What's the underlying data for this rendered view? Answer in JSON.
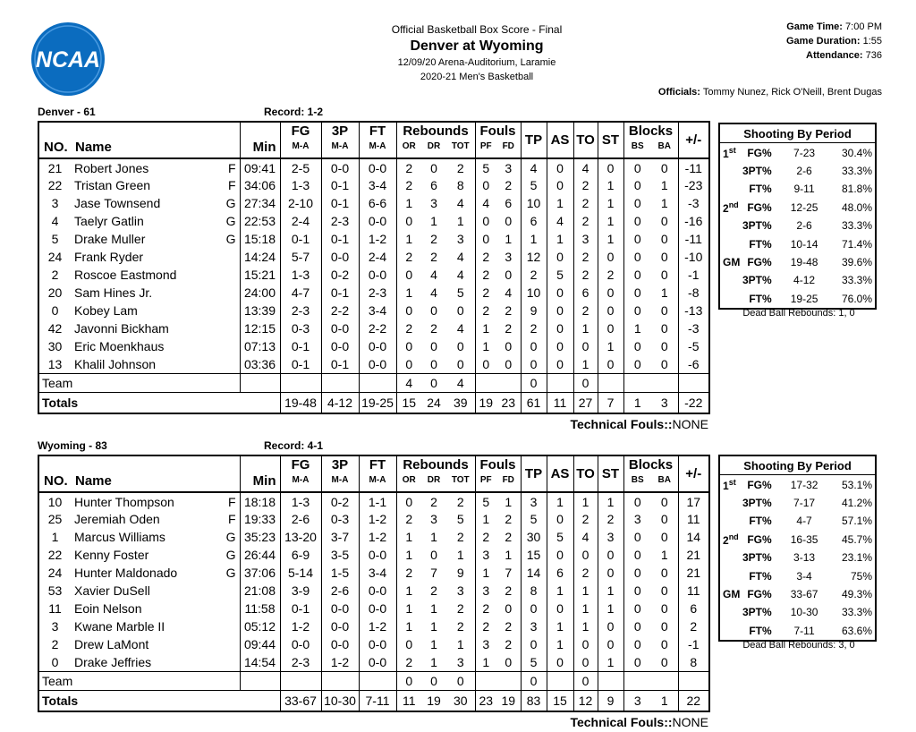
{
  "header": {
    "logo": "NCAA",
    "subtitle": "Official Basketball Box Score - Final",
    "title": "Denver at Wyoming",
    "venue": "12/09/20 Arena-Auditorium, Laramie",
    "season": "2020-21 Men's Basketball"
  },
  "game_info": [
    {
      "label": "Game Time:",
      "value": "7:00 PM"
    },
    {
      "label": "Game Duration:",
      "value": "1:55"
    },
    {
      "label": "Attendance:",
      "value": "736"
    }
  ],
  "officials": {
    "label": "Officials:",
    "value": "Tommy Nunez, Rick O'Neill, Brent Dugas"
  },
  "columns": {
    "no": "NO.",
    "name": "Name",
    "min": "Min",
    "fg": "FG",
    "fg_sub": "M-A",
    "tp3": "3P",
    "tp3_sub": "M-A",
    "ft": "FT",
    "ft_sub": "M-A",
    "rebounds": "Rebounds",
    "or": "OR",
    "dr": "DR",
    "tot": "TOT",
    "fouls": "Fouls",
    "pf": "PF",
    "fd": "FD",
    "tp": "TP",
    "as": "AS",
    "to": "TO",
    "st": "ST",
    "blocks": "Blocks",
    "bs": "BS",
    "ba": "BA",
    "pm": "+/-"
  },
  "teams": [
    {
      "label": "Denver - 61",
      "record": "Record: 1-2",
      "players": [
        {
          "no": "21",
          "name": "Robert Jones",
          "pos": "F",
          "min": "09:41",
          "stats": [
            "2-5",
            "0-0",
            "0-0",
            "2",
            "0",
            "2",
            "5",
            "3",
            "4",
            "0",
            "4",
            "0",
            "0",
            "0",
            "-11"
          ]
        },
        {
          "no": "22",
          "name": "Tristan Green",
          "pos": "F",
          "min": "34:06",
          "stats": [
            "1-3",
            "0-1",
            "3-4",
            "2",
            "6",
            "8",
            "0",
            "2",
            "5",
            "0",
            "2",
            "1",
            "0",
            "1",
            "-23"
          ]
        },
        {
          "no": "3",
          "name": "Jase Townsend",
          "pos": "G",
          "min": "27:34",
          "stats": [
            "2-10",
            "0-1",
            "6-6",
            "1",
            "3",
            "4",
            "4",
            "6",
            "10",
            "1",
            "2",
            "1",
            "0",
            "1",
            "-3"
          ]
        },
        {
          "no": "4",
          "name": "Taelyr Gatlin",
          "pos": "G",
          "min": "22:53",
          "stats": [
            "2-4",
            "2-3",
            "0-0",
            "0",
            "1",
            "1",
            "0",
            "0",
            "6",
            "4",
            "2",
            "1",
            "0",
            "0",
            "-16"
          ]
        },
        {
          "no": "5",
          "name": "Drake Muller",
          "pos": "G",
          "min": "15:18",
          "stats": [
            "0-1",
            "0-1",
            "1-2",
            "1",
            "2",
            "3",
            "0",
            "1",
            "1",
            "1",
            "3",
            "1",
            "0",
            "0",
            "-11"
          ]
        },
        {
          "no": "24",
          "name": "Frank Ryder",
          "min": "14:24",
          "stats": [
            "5-7",
            "0-0",
            "2-4",
            "2",
            "2",
            "4",
            "2",
            "3",
            "12",
            "0",
            "2",
            "0",
            "0",
            "0",
            "-10"
          ]
        },
        {
          "no": "2",
          "name": "Roscoe Eastmond",
          "min": "15:21",
          "stats": [
            "1-3",
            "0-2",
            "0-0",
            "0",
            "4",
            "4",
            "2",
            "0",
            "2",
            "5",
            "2",
            "2",
            "0",
            "0",
            "-1"
          ]
        },
        {
          "no": "20",
          "name": "Sam Hines Jr.",
          "min": "24:00",
          "stats": [
            "4-7",
            "0-1",
            "2-3",
            "1",
            "4",
            "5",
            "2",
            "4",
            "10",
            "0",
            "6",
            "0",
            "0",
            "1",
            "-8"
          ]
        },
        {
          "no": "0",
          "name": "Kobey Lam",
          "min": "13:39",
          "stats": [
            "2-3",
            "2-2",
            "3-4",
            "0",
            "0",
            "0",
            "2",
            "2",
            "9",
            "0",
            "2",
            "0",
            "0",
            "0",
            "-13"
          ]
        },
        {
          "no": "42",
          "name": "Javonni Bickham",
          "min": "12:15",
          "stats": [
            "0-3",
            "0-0",
            "2-2",
            "2",
            "2",
            "4",
            "1",
            "2",
            "2",
            "0",
            "1",
            "0",
            "1",
            "0",
            "-3"
          ]
        },
        {
          "no": "30",
          "name": "Eric Moenkhaus",
          "min": "07:13",
          "stats": [
            "0-1",
            "0-0",
            "0-0",
            "0",
            "0",
            "0",
            "1",
            "0",
            "0",
            "0",
            "0",
            "1",
            "0",
            "0",
            "-5"
          ]
        },
        {
          "no": "13",
          "name": "Khalil Johnson",
          "min": "03:36",
          "stats": [
            "0-1",
            "0-1",
            "0-0",
            "0",
            "0",
            "0",
            "0",
            "0",
            "0",
            "0",
            "1",
            "0",
            "0",
            "0",
            "-6"
          ]
        }
      ],
      "team_row": {
        "label": "Team",
        "or": "4",
        "dr": "0",
        "tot": "4",
        "tp": "0",
        "to": "0"
      },
      "totals": {
        "label": "Totals",
        "stats": [
          "19-48",
          "4-12",
          "19-25",
          "15",
          "24",
          "39",
          "19",
          "23",
          "61",
          "11",
          "27",
          "7",
          "1",
          "3",
          "-22"
        ]
      },
      "technical_fouls": {
        "label": "Technical Fouls::",
        "value": "NONE"
      },
      "shooting": {
        "title": "Shooting By Period",
        "periods": [
          {
            "num": "1",
            "sup": "st",
            "rows": [
              [
                "FG%",
                "7-23",
                "30.4%"
              ],
              [
                "3PT%",
                "2-6",
                "33.3%"
              ],
              [
                "FT%",
                "9-11",
                "81.8%"
              ]
            ]
          },
          {
            "num": "2",
            "sup": "nd",
            "rows": [
              [
                "FG%",
                "12-25",
                "48.0%"
              ],
              [
                "3PT%",
                "2-6",
                "33.3%"
              ],
              [
                "FT%",
                "10-14",
                "71.4%"
              ]
            ]
          },
          {
            "num": "GM",
            "rows": [
              [
                "FG%",
                "19-48",
                "39.6%"
              ],
              [
                "3PT%",
                "4-12",
                "33.3%"
              ],
              [
                "FT%",
                "19-25",
                "76.0%"
              ]
            ]
          }
        ]
      },
      "dead_ball": "Dead Ball Rebounds: 1, 0"
    },
    {
      "label": "Wyoming - 83",
      "record": "Record: 4-1",
      "players": [
        {
          "no": "10",
          "name": "Hunter Thompson",
          "pos": "F",
          "min": "18:18",
          "stats": [
            "1-3",
            "0-2",
            "1-1",
            "0",
            "2",
            "2",
            "5",
            "1",
            "3",
            "1",
            "1",
            "1",
            "0",
            "0",
            "17"
          ]
        },
        {
          "no": "25",
          "name": "Jeremiah Oden",
          "pos": "F",
          "min": "19:33",
          "stats": [
            "2-6",
            "0-3",
            "1-2",
            "2",
            "3",
            "5",
            "1",
            "2",
            "5",
            "0",
            "2",
            "2",
            "3",
            "0",
            "11"
          ]
        },
        {
          "no": "1",
          "name": "Marcus Williams",
          "pos": "G",
          "min": "35:23",
          "stats": [
            "13-20",
            "3-7",
            "1-2",
            "1",
            "1",
            "2",
            "2",
            "2",
            "30",
            "5",
            "4",
            "3",
            "0",
            "0",
            "14"
          ]
        },
        {
          "no": "22",
          "name": "Kenny Foster",
          "pos": "G",
          "min": "26:44",
          "stats": [
            "6-9",
            "3-5",
            "0-0",
            "1",
            "0",
            "1",
            "3",
            "1",
            "15",
            "0",
            "0",
            "0",
            "0",
            "1",
            "21"
          ]
        },
        {
          "no": "24",
          "name": "Hunter Maldonado",
          "pos": "G",
          "min": "37:06",
          "stats": [
            "5-14",
            "1-5",
            "3-4",
            "2",
            "7",
            "9",
            "1",
            "7",
            "14",
            "6",
            "2",
            "0",
            "0",
            "0",
            "21"
          ]
        },
        {
          "no": "53",
          "name": "Xavier DuSell",
          "min": "21:08",
          "stats": [
            "3-9",
            "2-6",
            "0-0",
            "1",
            "2",
            "3",
            "3",
            "2",
            "8",
            "1",
            "1",
            "1",
            "0",
            "0",
            "11"
          ]
        },
        {
          "no": "11",
          "name": "Eoin Nelson",
          "min": "11:58",
          "stats": [
            "0-1",
            "0-0",
            "0-0",
            "1",
            "1",
            "2",
            "2",
            "0",
            "0",
            "0",
            "1",
            "1",
            "0",
            "0",
            "6"
          ]
        },
        {
          "no": "3",
          "name": "Kwane Marble II",
          "min": "05:12",
          "stats": [
            "1-2",
            "0-0",
            "1-2",
            "1",
            "1",
            "2",
            "2",
            "2",
            "3",
            "1",
            "1",
            "0",
            "0",
            "0",
            "2"
          ]
        },
        {
          "no": "2",
          "name": "Drew LaMont",
          "min": "09:44",
          "stats": [
            "0-0",
            "0-0",
            "0-0",
            "0",
            "1",
            "1",
            "3",
            "2",
            "0",
            "1",
            "0",
            "0",
            "0",
            "0",
            "-1"
          ]
        },
        {
          "no": "0",
          "name": "Drake Jeffries",
          "min": "14:54",
          "stats": [
            "2-3",
            "1-2",
            "0-0",
            "2",
            "1",
            "3",
            "1",
            "0",
            "5",
            "0",
            "0",
            "1",
            "0",
            "0",
            "8"
          ]
        }
      ],
      "team_row": {
        "label": "Team",
        "or": "0",
        "dr": "0",
        "tot": "0",
        "tp": "0",
        "to": "0"
      },
      "totals": {
        "label": "Totals",
        "stats": [
          "33-67",
          "10-30",
          "7-11",
          "11",
          "19",
          "30",
          "23",
          "19",
          "83",
          "15",
          "12",
          "9",
          "3",
          "1",
          "22"
        ]
      },
      "technical_fouls": {
        "label": "Technical Fouls::",
        "value": "NONE"
      },
      "shooting": {
        "title": "Shooting By Period",
        "periods": [
          {
            "num": "1",
            "sup": "st",
            "rows": [
              [
                "FG%",
                "17-32",
                "53.1%"
              ],
              [
                "3PT%",
                "7-17",
                "41.2%"
              ],
              [
                "FT%",
                "4-7",
                "57.1%"
              ]
            ]
          },
          {
            "num": "2",
            "sup": "nd",
            "rows": [
              [
                "FG%",
                "16-35",
                "45.7%"
              ],
              [
                "3PT%",
                "3-13",
                "23.1%"
              ],
              [
                "FT%",
                "3-4",
                "75%"
              ]
            ]
          },
          {
            "num": "GM",
            "rows": [
              [
                "FG%",
                "33-67",
                "49.3%"
              ],
              [
                "3PT%",
                "10-30",
                "33.3%"
              ],
              [
                "FT%",
                "7-11",
                "63.6%"
              ]
            ]
          }
        ]
      },
      "dead_ball": "Dead Ball Rebounds: 3, 0"
    }
  ]
}
